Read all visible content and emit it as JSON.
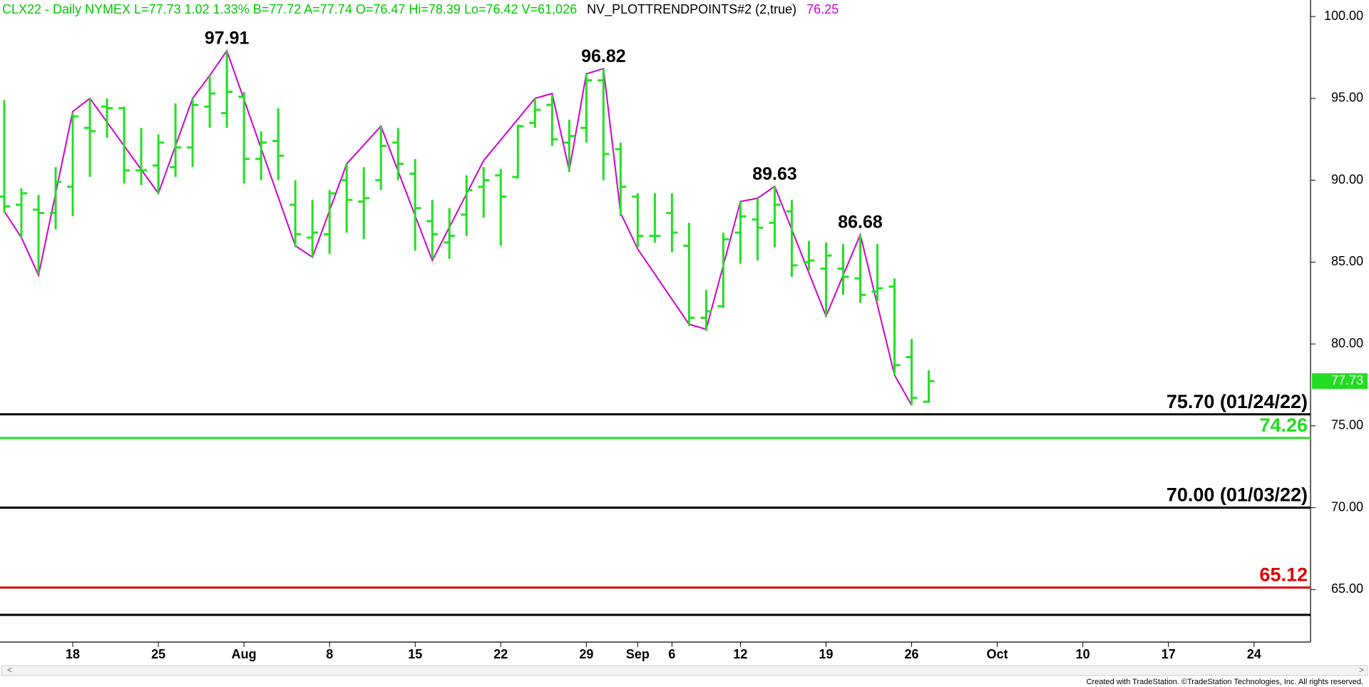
{
  "chart_data": {
    "type": "ohlc",
    "header": [
      {
        "text": "CLX22 - Daily  NYMEX  L=77.73  1.02  1.33%  B=77.72  A=77.74  O=76.47  Hi=78.39  Lo=76.42  V=61,026",
        "color": "#00c800"
      },
      {
        "text": "NV_PLOTTRENDPOINTS#2 (2,true)",
        "color": "#000000"
      },
      {
        "text": "76.25",
        "color": "#d000d0"
      }
    ],
    "footer": "Created with TradeStation. ©TradeStation Technologies, Inc. All rights reserved.",
    "color": "#22e022",
    "open": [
      89.0,
      88.5,
      88.2,
      88.0,
      89.6,
      93.2,
      94.5,
      94.4,
      90.6,
      90.9,
      90.8,
      92.0,
      94.5,
      94.1,
      95.1,
      91.3,
      92.4,
      88.5,
      86.5,
      86.7,
      90.0,
      88.7,
      90.0,
      92.3,
      90.4,
      87.5,
      86.2,
      87.9,
      89.6,
      90.3,
      90.2,
      93.5,
      94.6,
      92.3,
      93.2,
      96.1,
      91.9,
      89.0,
      86.6,
      88.0,
      86.0,
      81.6,
      82.3,
      86.8,
      87.6,
      87.4,
      88.1,
      85.0,
      84.6,
      84.6,
      84.0,
      83.2,
      83.5,
      79.2,
      76.47
    ],
    "high": [
      94.9,
      89.5,
      89.1,
      90.8,
      94.1,
      95.0,
      95.0,
      94.5,
      93.2,
      92.8,
      94.7,
      95.0,
      96.4,
      97.91,
      95.4,
      93.0,
      94.4,
      90.0,
      88.8,
      89.4,
      91.0,
      90.8,
      93.3,
      93.2,
      91.3,
      88.8,
      88.3,
      90.3,
      90.8,
      90.7,
      93.4,
      95.0,
      95.2,
      93.7,
      96.5,
      96.82,
      92.3,
      89.2,
      89.2,
      89.2,
      87.4,
      83.3,
      86.8,
      88.7,
      88.9,
      89.63,
      88.8,
      86.3,
      86.2,
      86.1,
      86.68,
      86.1,
      84.0,
      80.3,
      78.39
    ],
    "low": [
      88.0,
      86.5,
      84.3,
      87.0,
      87.8,
      90.2,
      92.6,
      89.8,
      89.7,
      89.2,
      90.2,
      90.8,
      93.2,
      93.2,
      89.8,
      90.0,
      90.0,
      85.9,
      85.3,
      85.5,
      86.8,
      86.4,
      89.4,
      90.0,
      85.7,
      85.2,
      85.2,
      86.6,
      87.7,
      86.0,
      90.1,
      93.2,
      92.1,
      90.5,
      92.3,
      90.0,
      87.8,
      85.9,
      86.2,
      85.6,
      81.1,
      80.8,
      82.2,
      84.9,
      85.1,
      85.9,
      84.1,
      84.5,
      81.7,
      83.0,
      82.5,
      82.6,
      78.1,
      76.25,
      76.42
    ],
    "close": [
      88.4,
      89.2,
      88.0,
      89.9,
      93.9,
      93.0,
      94.4,
      90.6,
      90.6,
      92.3,
      92.0,
      94.6,
      95.3,
      95.4,
      91.3,
      92.3,
      91.5,
      86.7,
      86.8,
      89.2,
      88.8,
      88.9,
      92.1,
      91.0,
      88.3,
      86.7,
      86.6,
      89.4,
      90.0,
      89.0,
      93.3,
      94.3,
      92.5,
      92.7,
      96.1,
      91.6,
      89.6,
      86.6,
      86.6,
      86.8,
      81.6,
      82.0,
      86.4,
      87.8,
      87.1,
      88.5,
      84.8,
      85.1,
      85.4,
      84.1,
      83.0,
      83.4,
      78.7,
      76.7,
      77.73
    ],
    "trend": {
      "color": "#d000d0",
      "x": [
        0,
        1,
        2,
        4,
        5,
        9,
        11,
        12,
        13,
        17,
        18,
        20,
        22,
        25,
        28,
        31,
        32,
        33,
        34,
        35,
        36,
        37,
        40,
        41,
        43,
        44,
        45,
        48,
        50,
        52,
        53
      ],
      "values": [
        88.1,
        86.5,
        84.2,
        94.2,
        95.0,
        89.2,
        95.0,
        96.4,
        97.91,
        86.0,
        85.3,
        91.0,
        93.3,
        85.1,
        91.2,
        95.0,
        95.3,
        90.6,
        96.5,
        96.82,
        88.0,
        85.8,
        81.2,
        80.9,
        88.7,
        88.9,
        89.63,
        81.7,
        86.68,
        78.1,
        76.25
      ]
    },
    "annotations": [
      {
        "x": 13,
        "value": 97.91
      },
      {
        "x": 35,
        "value": 96.82
      },
      {
        "x": 45,
        "value": 89.63
      },
      {
        "x": 50,
        "value": 86.68
      }
    ],
    "hlines": [
      {
        "value": 75.7,
        "color": "#000000",
        "label": "75.70 (01/24/22)"
      },
      {
        "value": 74.26,
        "color": "#22dd22",
        "label": "74.26"
      },
      {
        "value": 70.0,
        "color": "#000000",
        "label": "70.00 (01/03/22)"
      },
      {
        "value": 65.12,
        "color": "#dd0000",
        "label": "65.12"
      },
      {
        "value": 63.45,
        "color": "#000000"
      }
    ],
    "last_price": {
      "value": 77.73,
      "color": "#22dd22"
    },
    "xlim": [
      -0.25,
      76.3
    ],
    "xticks": [
      {
        "value": 4,
        "label": "18"
      },
      {
        "value": 9,
        "label": "25"
      },
      {
        "value": 14,
        "label": "Aug"
      },
      {
        "value": 19,
        "label": "8"
      },
      {
        "value": 24,
        "label": "15"
      },
      {
        "value": 29,
        "label": "22"
      },
      {
        "value": 34,
        "label": "29"
      },
      {
        "value": 37,
        "label": "Sep"
      },
      {
        "value": 39,
        "label": "6"
      },
      {
        "value": 43,
        "label": "12"
      },
      {
        "value": 48,
        "label": "19"
      },
      {
        "value": 53,
        "label": "26"
      },
      {
        "value": 58,
        "label": "Oct"
      },
      {
        "value": 63,
        "label": "10"
      },
      {
        "value": 68,
        "label": "17"
      },
      {
        "value": 73,
        "label": "24"
      }
    ],
    "ylim": [
      61.79,
      101.01
    ],
    "yticks": [
      {
        "value": 65,
        "label": "65.00"
      },
      {
        "value": 70,
        "label": "70.00"
      },
      {
        "value": 75,
        "label": "75.00"
      },
      {
        "value": 80,
        "label": "80.00"
      },
      {
        "value": 85,
        "label": "85.00"
      },
      {
        "value": 90,
        "label": "90.00"
      },
      {
        "value": 95,
        "label": "95.00"
      },
      {
        "value": 100,
        "label": "100.00"
      }
    ]
  }
}
